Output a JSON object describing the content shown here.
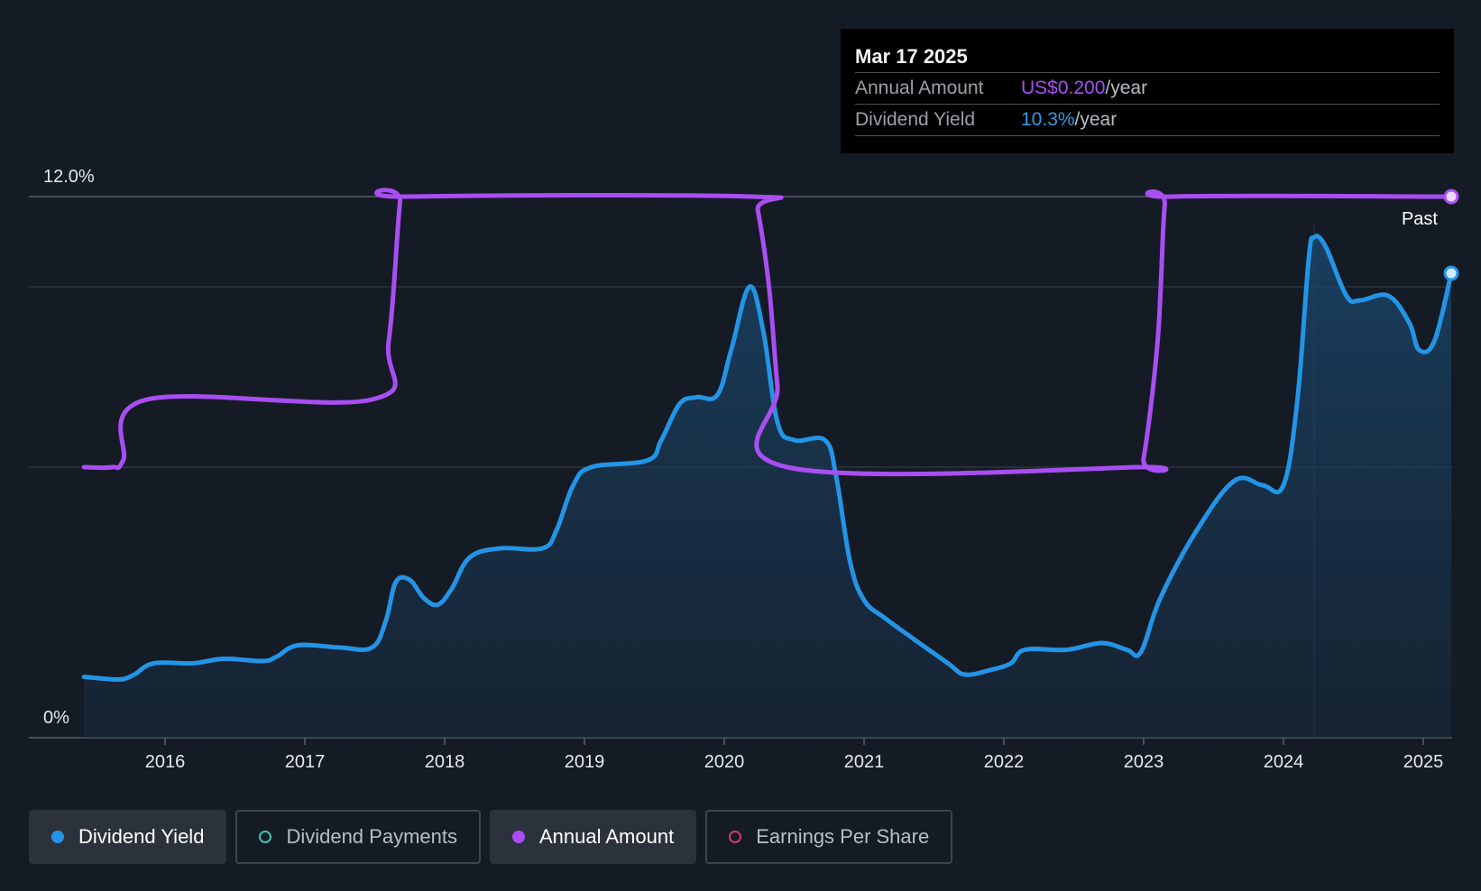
{
  "tooltip": {
    "date": "Mar 17 2025",
    "annual_amount_label": "Annual Amount",
    "annual_amount_value": "US$0.200",
    "annual_amount_suffix": "/year",
    "dividend_yield_label": "Dividend Yield",
    "dividend_yield_value": "10.3%",
    "dividend_yield_suffix": "/year"
  },
  "past_label": "Past",
  "legend": [
    {
      "label": "Dividend Yield",
      "color": "#2394e6",
      "filled": true,
      "active": true
    },
    {
      "label": "Dividend Payments",
      "color": "#3fc1b0",
      "filled": false,
      "active": false
    },
    {
      "label": "Annual Amount",
      "color": "#a84ef2",
      "filled": true,
      "active": true
    },
    {
      "label": "Earnings Per Share",
      "color": "#d0387a",
      "filled": false,
      "active": false
    }
  ],
  "colors": {
    "background": "#151b24",
    "yield_line": "#2394e6",
    "annual_line": "#a84ef2",
    "grid": "#3a404a"
  },
  "chart_data": {
    "type": "line",
    "title": "",
    "xlabel": "",
    "ylabel": "",
    "y_tick_labels": [
      "0%",
      "12.0%"
    ],
    "ylim": [
      0,
      12
    ],
    "x_ticks": [
      2016,
      2017,
      2018,
      2019,
      2020,
      2021,
      2022,
      2023,
      2024,
      2025
    ],
    "xlim": [
      2015.3,
      2025.2
    ],
    "past_region_start": 2024.22,
    "grid": true,
    "series": [
      {
        "name": "Dividend Yield",
        "unit": "%",
        "points": [
          [
            2015.42,
            1.35
          ],
          [
            2015.6,
            1.3
          ],
          [
            2015.7,
            1.3
          ],
          [
            2015.78,
            1.4
          ],
          [
            2015.92,
            1.65
          ],
          [
            2016.2,
            1.65
          ],
          [
            2016.42,
            1.75
          ],
          [
            2016.7,
            1.7
          ],
          [
            2016.8,
            1.8
          ],
          [
            2016.95,
            2.05
          ],
          [
            2017.25,
            2.0
          ],
          [
            2017.48,
            2.0
          ],
          [
            2017.58,
            2.6
          ],
          [
            2017.65,
            3.45
          ],
          [
            2017.75,
            3.5
          ],
          [
            2017.85,
            3.1
          ],
          [
            2017.95,
            2.95
          ],
          [
            2018.05,
            3.3
          ],
          [
            2018.18,
            4.0
          ],
          [
            2018.4,
            4.2
          ],
          [
            2018.7,
            4.2
          ],
          [
            2018.8,
            4.6
          ],
          [
            2018.92,
            5.6
          ],
          [
            2019.05,
            6.0
          ],
          [
            2019.45,
            6.15
          ],
          [
            2019.55,
            6.6
          ],
          [
            2019.68,
            7.4
          ],
          [
            2019.8,
            7.55
          ],
          [
            2019.95,
            7.6
          ],
          [
            2020.05,
            8.6
          ],
          [
            2020.18,
            10.0
          ],
          [
            2020.28,
            9.0
          ],
          [
            2020.38,
            7.0
          ],
          [
            2020.5,
            6.6
          ],
          [
            2020.72,
            6.6
          ],
          [
            2020.8,
            5.8
          ],
          [
            2020.9,
            3.9
          ],
          [
            2021.0,
            3.05
          ],
          [
            2021.15,
            2.65
          ],
          [
            2021.35,
            2.2
          ],
          [
            2021.6,
            1.65
          ],
          [
            2021.72,
            1.4
          ],
          [
            2021.9,
            1.5
          ],
          [
            2022.05,
            1.65
          ],
          [
            2022.15,
            1.95
          ],
          [
            2022.45,
            1.95
          ],
          [
            2022.7,
            2.1
          ],
          [
            2022.88,
            1.95
          ],
          [
            2022.98,
            1.9
          ],
          [
            2023.12,
            3.1
          ],
          [
            2023.38,
            4.6
          ],
          [
            2023.65,
            5.7
          ],
          [
            2023.85,
            5.6
          ],
          [
            2024.0,
            5.6
          ],
          [
            2024.1,
            7.5
          ],
          [
            2024.18,
            10.6
          ],
          [
            2024.22,
            11.1
          ],
          [
            2024.3,
            10.9
          ],
          [
            2024.45,
            9.8
          ],
          [
            2024.55,
            9.7
          ],
          [
            2024.75,
            9.8
          ],
          [
            2024.9,
            9.2
          ],
          [
            2024.97,
            8.6
          ],
          [
            2025.08,
            8.8
          ],
          [
            2025.2,
            10.3
          ]
        ]
      },
      {
        "name": "Annual Amount",
        "unit": "US$/year",
        "points": [
          [
            2015.42,
            6.0
          ],
          [
            2015.62,
            6.0
          ],
          [
            2015.7,
            6.15
          ],
          [
            2015.87,
            7.5
          ],
          [
            2017.48,
            7.5
          ],
          [
            2017.6,
            8.8
          ],
          [
            2017.68,
            11.85
          ],
          [
            2017.72,
            12.0
          ],
          [
            2020.2,
            12.0
          ],
          [
            2020.24,
            11.7
          ],
          [
            2020.32,
            10.0
          ],
          [
            2020.38,
            7.8
          ],
          [
            2020.45,
            6.0
          ],
          [
            2022.95,
            6.0
          ],
          [
            2023.0,
            6.2
          ],
          [
            2023.1,
            8.8
          ],
          [
            2023.15,
            11.8
          ],
          [
            2023.2,
            12.0
          ],
          [
            2025.2,
            12.0
          ]
        ]
      }
    ]
  }
}
